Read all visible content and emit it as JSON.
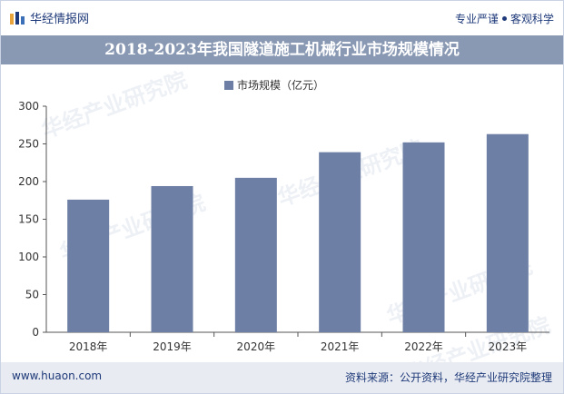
{
  "header": {
    "brand": "华经情报网",
    "tagline_left": "专业严谨",
    "tagline_right": "客观科学"
  },
  "chart_data": {
    "type": "bar",
    "title": "2018-2023年我国隧道施工机械行业市场规模情况",
    "categories": [
      "2018年",
      "2019年",
      "2020年",
      "2021年",
      "2022年",
      "2023年"
    ],
    "series": [
      {
        "name": "市场规模（亿元）",
        "values": [
          176,
          194,
          205,
          239,
          252,
          263
        ]
      }
    ],
    "ylim": [
      0,
      300
    ],
    "yticks": [
      0,
      50,
      100,
      150,
      200,
      250,
      300
    ],
    "grid": false,
    "legend": "top",
    "colors": {
      "bar": "#6e7fa6",
      "title_bg": "#8a99b3"
    }
  },
  "footer": {
    "url": "www.huaon.com",
    "source": "资料来源：公开资料，华经产业研究院整理"
  },
  "watermark": "华经产业研究院"
}
